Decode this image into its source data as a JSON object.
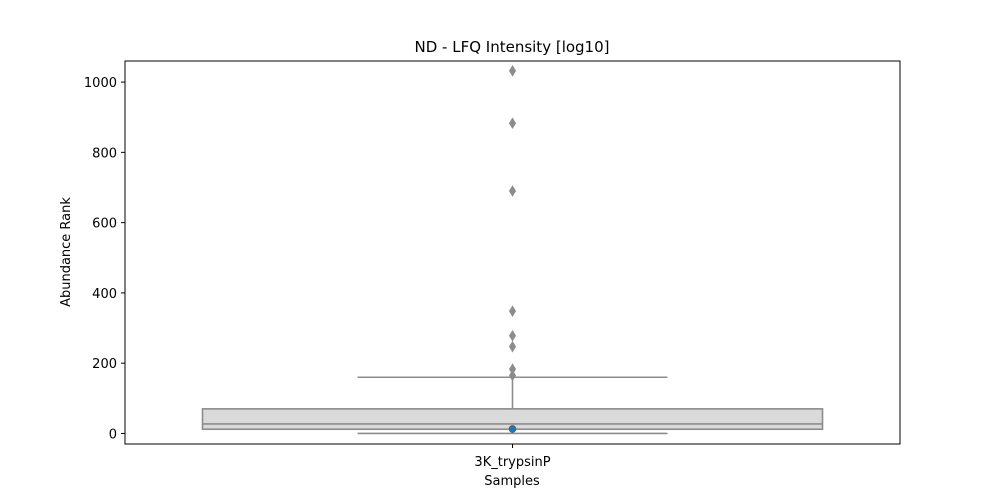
{
  "chart_data": {
    "type": "box",
    "title": "ND - LFQ Intensity [log10]",
    "xlabel": "Samples",
    "ylabel": "Abundance Rank",
    "categories": [
      "3K_trypsinP"
    ],
    "ylim": [
      -30,
      1060
    ],
    "yticks": [
      0,
      200,
      400,
      600,
      800,
      1000
    ],
    "grid": false,
    "box": {
      "whisker_low": 0,
      "q1": 12,
      "median": 27,
      "q3": 70,
      "whisker_high": 160
    },
    "outliers": [
      1032,
      883,
      690,
      348,
      278,
      247,
      183,
      165
    ],
    "highlight_point": {
      "value": 13,
      "color": "#1f77b4"
    },
    "colors": {
      "box_fill": "#dadada",
      "box_line": "#8c8c8c",
      "outlier": "#8c8c8c"
    }
  }
}
